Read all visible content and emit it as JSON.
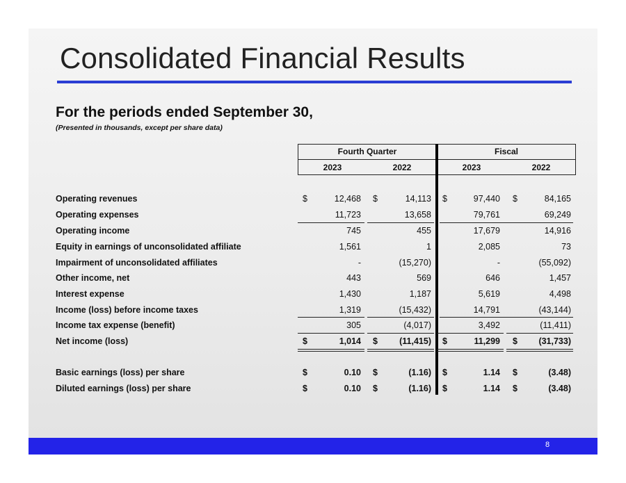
{
  "title": "Consolidated Financial Results",
  "subtitle": "For the periods ended September 30,",
  "note": "(Presented in thousands, except per share data)",
  "page_number": "8",
  "column_groups": [
    "Fourth Quarter",
    "Fiscal"
  ],
  "years": [
    "2023",
    "2022",
    "2023",
    "2022"
  ],
  "currency_symbol": "$",
  "rows": [
    {
      "label": "Operating revenues",
      "values": [
        "12,468",
        "14,113",
        "97,440",
        "84,165"
      ],
      "dollar": true
    },
    {
      "label": "Operating expenses",
      "values": [
        "11,723",
        "13,658",
        "79,761",
        "69,249"
      ]
    },
    {
      "label": "Operating income",
      "values": [
        "745",
        "455",
        "17,679",
        "14,916"
      ]
    },
    {
      "label": "Equity in earnings of unconsolidated affiliate",
      "values": [
        "1,561",
        "1",
        "2,085",
        "73"
      ]
    },
    {
      "label": "Impairment of unconsolidated affiliates",
      "values": [
        "-",
        "(15,270)",
        "-",
        "(55,092)"
      ]
    },
    {
      "label": "Other income, net",
      "values": [
        "443",
        "569",
        "646",
        "1,457"
      ]
    },
    {
      "label": "Interest expense",
      "values": [
        "1,430",
        "1,187",
        "5,619",
        "4,498"
      ]
    },
    {
      "label": "Income (loss) before income taxes",
      "values": [
        "1,319",
        "(15,432)",
        "14,791",
        "(43,144)"
      ]
    },
    {
      "label": "Income tax expense (benefit)",
      "values": [
        "305",
        "(4,017)",
        "3,492",
        "(11,411)"
      ]
    },
    {
      "label": "Net income (loss)",
      "values": [
        "1,014",
        "(11,415)",
        "11,299",
        "(31,733)"
      ],
      "dollar": true,
      "bold": true
    },
    {
      "label": "Basic earnings (loss) per share",
      "values": [
        "0.10",
        "(1.16)",
        "1.14",
        "(3.48)"
      ],
      "dollar": true,
      "bold": true
    },
    {
      "label": "Diluted earnings (loss) per share",
      "values": [
        "0.10",
        "(1.16)",
        "1.14",
        "(3.48)"
      ],
      "dollar": true,
      "bold": true
    }
  ]
}
